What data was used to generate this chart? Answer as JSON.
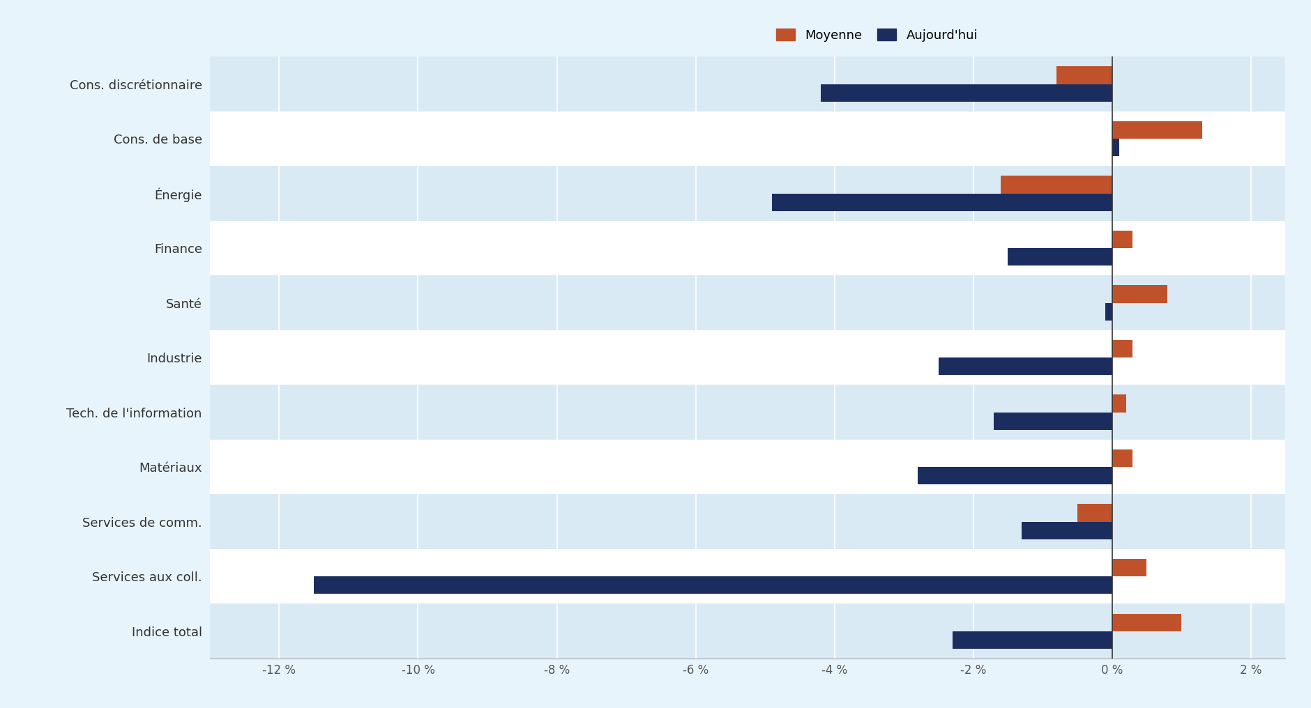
{
  "categories": [
    "Cons. discrétionnaire",
    "Cons. de base",
    "Énergie",
    "Finance",
    "Santé",
    "Industrie",
    "Tech. de l'information",
    "Matériaux",
    "Services de comm.",
    "Services aux coll.",
    "Indice total"
  ],
  "moyenne": [
    -0.8,
    1.3,
    -1.6,
    0.3,
    0.8,
    0.3,
    0.2,
    0.3,
    -0.5,
    0.5,
    1.0
  ],
  "aujourdhui": [
    -4.2,
    0.1,
    -4.9,
    -1.5,
    -0.1,
    -2.5,
    -1.7,
    -2.8,
    -1.3,
    -11.5,
    -2.3
  ],
  "color_moyenne": "#c0522b",
  "color_aujourdhui": "#1b2d5e",
  "bg_light": "#daeaf5",
  "bg_white": "#ffffff",
  "fig_bg": "#e8f4fb",
  "gridline_color": "#ffffff",
  "zero_line_color": "#333333",
  "xlim": [
    -13.0,
    2.5
  ],
  "xticks": [
    -12,
    -10,
    -8,
    -6,
    -4,
    -2,
    0,
    2
  ],
  "xtick_labels": [
    "-12 %",
    "-10 %",
    "-8 %",
    "-6 %",
    "-4 %",
    "-2 %",
    "0 %",
    "2 %"
  ],
  "legend_labels": [
    "Moyenne",
    "Aujourd'hui"
  ],
  "bar_height": 0.32,
  "figsize": [
    18.81,
    10.16
  ],
  "dpi": 100,
  "ylabel_fontsize": 13,
  "xlabel_fontsize": 12,
  "legend_fontsize": 13
}
